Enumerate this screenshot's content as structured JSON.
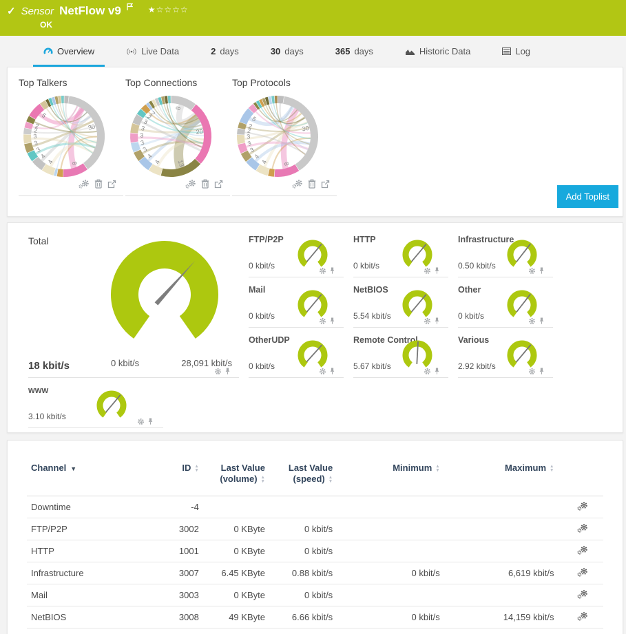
{
  "colors": {
    "green": "#b2c614",
    "gauge_green": "#adc80f",
    "blue": "#17a9dc",
    "navy": "#32455c",
    "needle": "#7d7d7d"
  },
  "header": {
    "kind": "Sensor",
    "title": "NetFlow v9",
    "status": "OK",
    "check": "✓",
    "rating_filled": 1,
    "rating_total": 5,
    "stars_filled": "★",
    "stars_empty": "☆☆☆☆"
  },
  "tabs": [
    {
      "label": "Overview"
    },
    {
      "label": "Live Data"
    },
    {
      "num": "2",
      "label": "days"
    },
    {
      "num": "30",
      "label": "days"
    },
    {
      "num": "365",
      "label": "days"
    },
    {
      "label": "Historic Data"
    },
    {
      "label": "Log"
    }
  ],
  "toplists": {
    "cards": [
      {
        "title": "Top Talkers"
      },
      {
        "title": "Top Connections"
      },
      {
        "title": "Top Protocols"
      }
    ],
    "add_button": "Add Toplist"
  },
  "gauges": {
    "total": {
      "label": "Total",
      "value": "18 kbit/s",
      "min": "0 kbit/s",
      "max": "28,091 kbit/s",
      "needle_deg": 42
    },
    "small": [
      {
        "label": "FTP/P2P",
        "value": "0 kbit/s",
        "needle_deg": 40
      },
      {
        "label": "HTTP",
        "value": "0 kbit/s",
        "needle_deg": 40
      },
      {
        "label": "Infrastructure",
        "value": "0.50 kbit/s",
        "needle_deg": 38
      },
      {
        "label": "Mail",
        "value": "0 kbit/s",
        "needle_deg": 40
      },
      {
        "label": "NetBIOS",
        "value": "5.54 kbit/s",
        "needle_deg": 40
      },
      {
        "label": "Other",
        "value": "0 kbit/s",
        "needle_deg": 38
      },
      {
        "label": "OtherUDP",
        "value": "0 kbit/s",
        "needle_deg": 42
      },
      {
        "label": "Remote Control",
        "value": "5.67 kbit/s",
        "needle_deg": 3
      },
      {
        "label": "Various",
        "value": "2.92 kbit/s",
        "needle_deg": 40
      }
    ],
    "www": {
      "label": "www",
      "value": "3.10 kbit/s",
      "needle_deg": 40
    }
  },
  "table": {
    "headers": {
      "channel": "Channel",
      "id": "ID",
      "last_volume": "Last Value\n(volume)",
      "last_speed": "Last Value\n(speed)",
      "minimum": "Minimum",
      "maximum": "Maximum"
    },
    "rows": [
      {
        "cells": [
          "Downtime",
          "-4",
          "",
          "",
          "",
          ""
        ]
      },
      {
        "cells": [
          "FTP/P2P",
          "3002",
          "0 KByte",
          "0 kbit/s",
          "",
          ""
        ]
      },
      {
        "cells": [
          "HTTP",
          "1001",
          "0 KByte",
          "0 kbit/s",
          "",
          ""
        ]
      },
      {
        "cells": [
          "Infrastructure",
          "3007",
          "6.45 KByte",
          "0.88 kbit/s",
          "0 kbit/s",
          "6,619 kbit/s"
        ]
      },
      {
        "cells": [
          "Mail",
          "3003",
          "0 KByte",
          "0 kbit/s",
          "",
          ""
        ]
      },
      {
        "cells": [
          "NetBIOS",
          "3008",
          "49 KByte",
          "6.66 kbit/s",
          "0 kbit/s",
          "14,159 kbit/s"
        ]
      }
    ]
  },
  "chart_data": [
    {
      "type": "chord",
      "title": "Top Talkers",
      "segments": [
        {
          "v": 1.5,
          "c": "#bdbdbd"
        },
        {
          "v": 30,
          "c": "#c9c9c9",
          "label": "30"
        },
        {
          "v": 8,
          "c": "#e879b4",
          "label": "8"
        },
        {
          "v": 2,
          "c": "#cf9f4e"
        },
        {
          "v": 1,
          "c": "#bcd6ee"
        },
        {
          "v": 4,
          "c": "#ece3c4",
          "label": "4"
        },
        {
          "v": 4,
          "c": "#c2c2c2",
          "label": "4"
        },
        {
          "v": 3,
          "c": "#62c7c4",
          "label": "3"
        },
        {
          "v": 3,
          "c": "#b0a169",
          "label": "3"
        },
        {
          "v": 3,
          "c": "#e6dbb8",
          "label": "3"
        },
        {
          "v": 2,
          "c": "#cccccc",
          "label": "2"
        },
        {
          "v": 2,
          "c": "#ef9ec7",
          "label": "2"
        },
        {
          "v": 2,
          "c": "#8a8444"
        },
        {
          "v": 5,
          "c": "#ea77b2",
          "label": "5"
        },
        {
          "v": 2,
          "c": "#d4c59a"
        },
        {
          "v": 1,
          "c": "#6f6b35"
        },
        {
          "v": 1,
          "c": "#62c7c4"
        },
        {
          "v": 1,
          "c": "#a9c6e8"
        },
        {
          "v": 1,
          "c": "#b0a169"
        },
        {
          "v": 1,
          "c": "#d4c59a"
        },
        {
          "v": 1,
          "c": "#79cbc8"
        }
      ]
    },
    {
      "type": "chord",
      "title": "Top Connections",
      "segments": [
        {
          "v": 8,
          "c": "#c9c9c9",
          "label": "8"
        },
        {
          "v": 20,
          "c": "#ea77b2",
          "label": "20"
        },
        {
          "v": 13,
          "c": "#8a8444",
          "label": "13"
        },
        {
          "v": 4,
          "c": "#ece3c4",
          "label": "4"
        },
        {
          "v": 4,
          "c": "#a9c6e8",
          "label": "4"
        },
        {
          "v": 3,
          "c": "#b0a169",
          "label": "3"
        },
        {
          "v": 3,
          "c": "#bcd6ee",
          "label": "3"
        },
        {
          "v": 3,
          "c": "#ef9ec7",
          "label": "3"
        },
        {
          "v": 3,
          "c": "#d4c59a",
          "label": "3"
        },
        {
          "v": 3,
          "c": "#c2c2c2",
          "label": "3"
        },
        {
          "v": 2,
          "c": "#62c7c4",
          "label": "2"
        },
        {
          "v": 2,
          "c": "#cf9f4e",
          "label": "2"
        },
        {
          "v": 1,
          "c": "#a9c6e8"
        },
        {
          "v": 1,
          "c": "#8a8444"
        },
        {
          "v": 1,
          "c": "#ece3c4"
        },
        {
          "v": 1,
          "c": "#c9c9c9"
        },
        {
          "v": 1,
          "c": "#62c7c4"
        },
        {
          "v": 1,
          "c": "#b0a169"
        },
        {
          "v": 1,
          "c": "#6f6b35"
        },
        {
          "v": 1,
          "c": "#79cbc8"
        }
      ]
    },
    {
      "type": "chord",
      "title": "Top Protocols",
      "segments": [
        {
          "v": 2,
          "c": "#bdbdbd"
        },
        {
          "v": 30,
          "c": "#c9c9c9",
          "label": "30"
        },
        {
          "v": 8,
          "c": "#e879b4",
          "label": "8"
        },
        {
          "v": 2,
          "c": "#cf9f4e"
        },
        {
          "v": 4,
          "c": "#ece3c4",
          "label": "4"
        },
        {
          "v": 4,
          "c": "#a9c6e8",
          "label": "4"
        },
        {
          "v": 3,
          "c": "#b0a169",
          "label": "3"
        },
        {
          "v": 3,
          "c": "#ef9ec7",
          "label": "3"
        },
        {
          "v": 3,
          "c": "#e6dbb8",
          "label": "3"
        },
        {
          "v": 2,
          "c": "#c2c2c2",
          "label": "2"
        },
        {
          "v": 2,
          "c": "#b0a169",
          "label": "2"
        },
        {
          "v": 5,
          "c": "#a9c6e8",
          "label": "5"
        },
        {
          "v": 2,
          "c": "#ef9ec7"
        },
        {
          "v": 1,
          "c": "#8a8444"
        },
        {
          "v": 1,
          "c": "#62c7c4"
        },
        {
          "v": 1,
          "c": "#cf9f4e"
        },
        {
          "v": 1,
          "c": "#b0a169"
        },
        {
          "v": 1,
          "c": "#6f6b35"
        },
        {
          "v": 1,
          "c": "#bcd6ee"
        },
        {
          "v": 1,
          "c": "#79cbc8"
        },
        {
          "v": 1,
          "c": "#a98a4f"
        }
      ]
    },
    {
      "type": "gauge",
      "title": "Total",
      "value": 18,
      "min": 0,
      "max": 28091,
      "unit": "kbit/s"
    }
  ]
}
